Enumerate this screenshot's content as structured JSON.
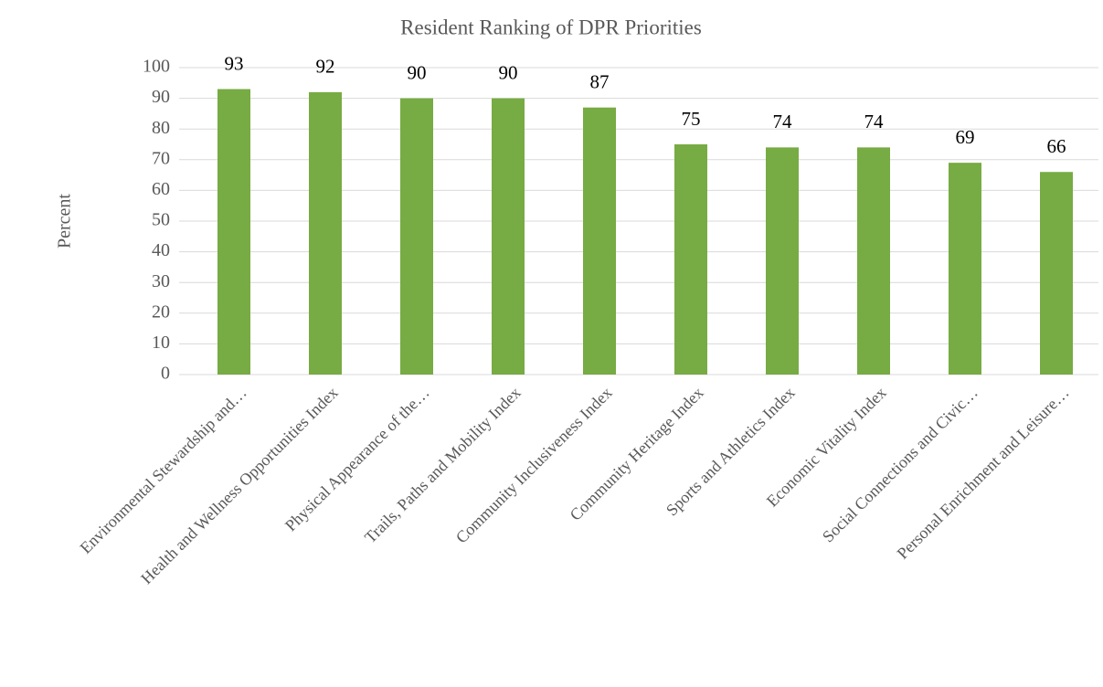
{
  "chart_data": {
    "type": "bar",
    "title": "Resident Ranking of DPR Priorities",
    "y_label": "Percent",
    "categories": [
      "Environmental Stewardship and…",
      "Health and Wellness Opportunities Index",
      "Physical Appearance of the…",
      "Trails, Paths and Mobility Index",
      "Community Inclusiveness Index",
      "Community Heritage Index",
      "Sports and Athletics Index",
      "Economic Vitality Index",
      "Social Connections and Civic…",
      "Personal Enrichment and Leisure…"
    ],
    "values": [
      93,
      92,
      90,
      90,
      87,
      75,
      74,
      74,
      69,
      66
    ],
    "color": "#77ab43",
    "ylim": [
      0,
      100
    ],
    "yticks": [
      0,
      10,
      20,
      30,
      40,
      50,
      60,
      70,
      80,
      90,
      100
    ],
    "grid": true
  }
}
